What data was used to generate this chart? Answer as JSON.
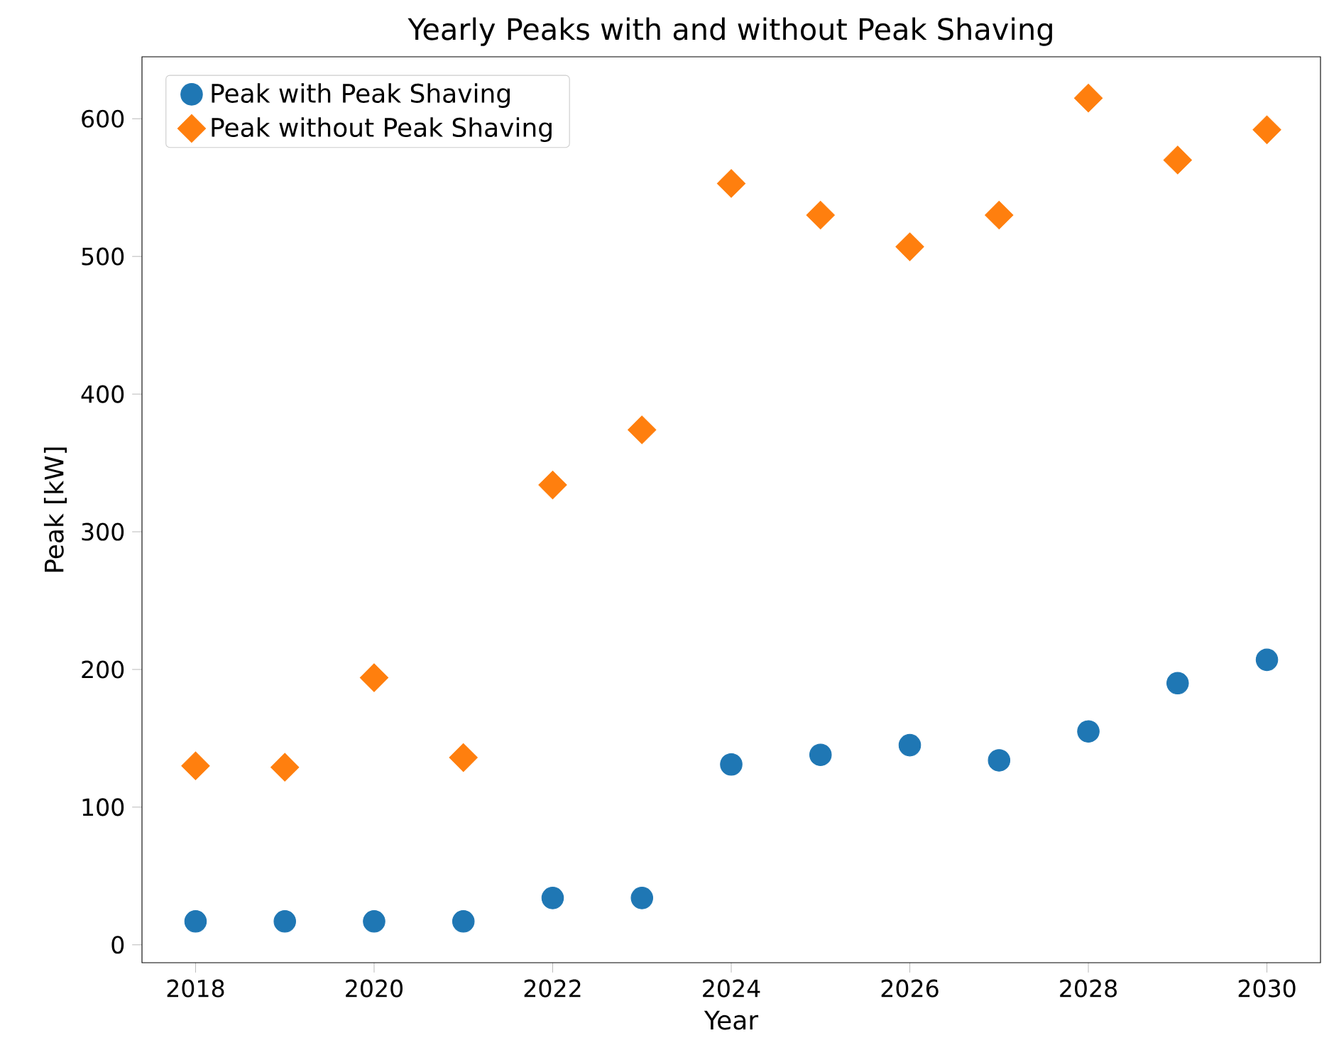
{
  "chart_data": {
    "type": "scatter",
    "title": "Yearly Peaks with and without Peak Shaving",
    "xlabel": "Year",
    "ylabel": "Peak [kW]",
    "x": [
      2018,
      2019,
      2020,
      2021,
      2022,
      2023,
      2024,
      2025,
      2026,
      2027,
      2028,
      2029,
      2030
    ],
    "series": [
      {
        "name": "Peak with Peak Shaving",
        "color": "#1f77b4",
        "marker": "circle",
        "values": [
          17,
          17,
          17,
          17,
          34,
          34,
          131,
          138,
          145,
          134,
          155,
          190,
          207
        ]
      },
      {
        "name": "Peak without Peak Shaving",
        "color": "#ff7f0e",
        "marker": "diamond",
        "values": [
          130,
          129,
          194,
          136,
          334,
          374,
          553,
          530,
          507,
          530,
          615,
          570,
          592
        ]
      }
    ],
    "xlim": [
      2017.4,
      2030.6
    ],
    "ylim": [
      -13,
      645
    ],
    "xticks": [
      2018,
      2020,
      2022,
      2024,
      2026,
      2028,
      2030
    ],
    "yticks": [
      0,
      100,
      200,
      300,
      400,
      500,
      600
    ],
    "legend": "top left",
    "grid": false
  }
}
